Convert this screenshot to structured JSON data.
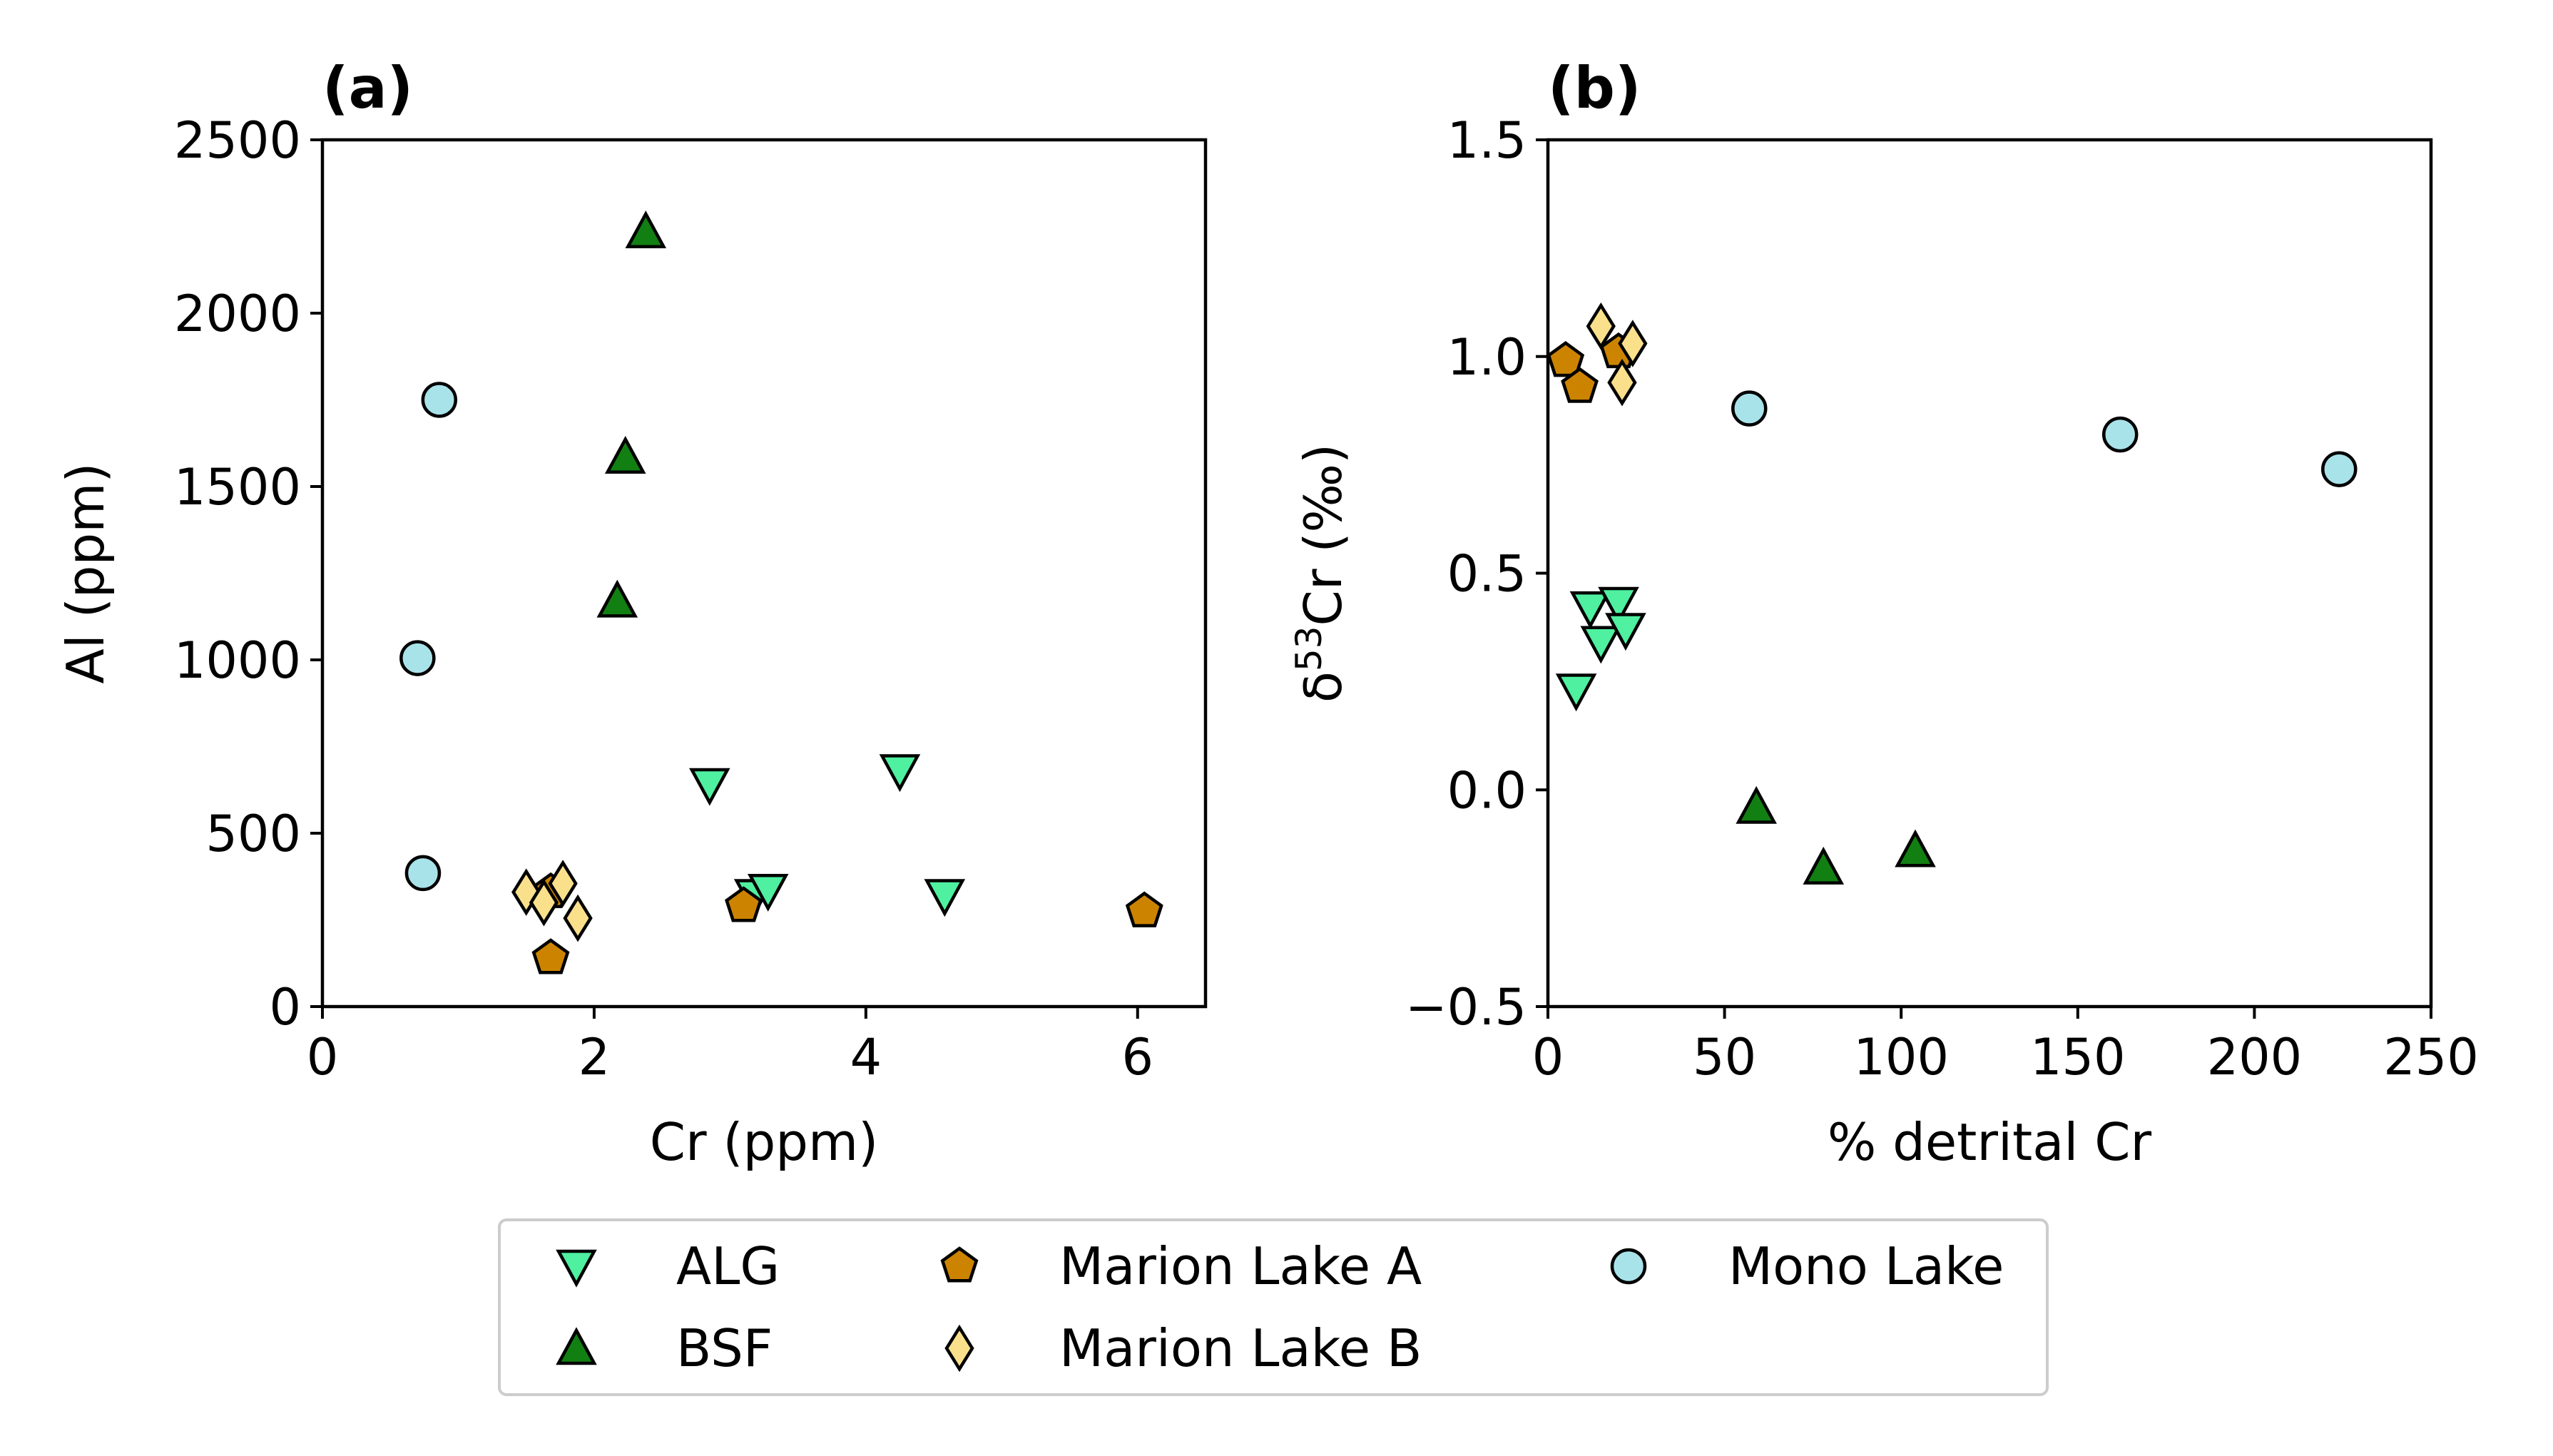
{
  "figure": {
    "legend": {
      "entries": [
        {
          "name": "ALG",
          "label": "ALG"
        },
        {
          "name": "BSF",
          "label": "BSF"
        },
        {
          "name": "Marion Lake A",
          "label": "Marion Lake A"
        },
        {
          "name": "Marion Lake B",
          "label": "Marion Lake B"
        },
        {
          "name": "Mono Lake",
          "label": "Mono Lake"
        }
      ]
    }
  },
  "chart_data": [
    {
      "type": "scatter",
      "id": "a",
      "title": "(a)",
      "xlabel": "Cr (ppm)",
      "ylabel": "Al (ppm)",
      "ylabel_suffix": "",
      "xlim": [
        0,
        6.5
      ],
      "ylim": [
        0,
        2500
      ],
      "xticks": [
        0,
        2,
        4,
        6
      ],
      "yticks": [
        0,
        500,
        1000,
        1500,
        2000,
        2500
      ],
      "xtick_labels": [
        "0",
        "2",
        "4",
        "6"
      ],
      "ytick_labels": [
        "0",
        "500",
        "1000",
        "1500",
        "2000",
        "2500"
      ],
      "series": [
        {
          "name": "ALG",
          "color": "#4ff0a0",
          "marker": "triangle-down",
          "x": [
            2.85,
            4.25,
            4.58,
            3.18,
            3.28
          ],
          "y": [
            640,
            680,
            320,
            320,
            335
          ]
        },
        {
          "name": "BSF",
          "color": "#127f12",
          "marker": "triangle-up",
          "x": [
            2.38,
            2.23,
            2.17
          ],
          "y": [
            2235,
            1585,
            1170
          ]
        },
        {
          "name": "Marion Lake A",
          "color": "#cc8400",
          "marker": "pentagon",
          "x": [
            1.68,
            1.68,
            3.1,
            6.05
          ],
          "y": [
            330,
            140,
            290,
            275
          ]
        },
        {
          "name": "Marion Lake B",
          "color": "#fbe08c",
          "marker": "diamond",
          "x": [
            1.5,
            1.77,
            1.88,
            1.63
          ],
          "y": [
            330,
            355,
            255,
            300
          ]
        },
        {
          "name": "Mono Lake",
          "color": "#a9e3ea",
          "marker": "circle",
          "x": [
            0.86,
            0.7,
            0.74
          ],
          "y": [
            1750,
            1005,
            385
          ]
        }
      ]
    },
    {
      "type": "scatter",
      "id": "b",
      "title": "(b)",
      "xlabel": "% detrital Cr",
      "ylabel": "δ",
      "ylabel_sup": "53",
      "ylabel_suffix": "Cr (‰)",
      "xlim": [
        0,
        250
      ],
      "ylim": [
        -0.5,
        1.5
      ],
      "xticks": [
        0,
        50,
        100,
        150,
        200,
        250
      ],
      "yticks": [
        -0.5,
        0.0,
        0.5,
        1.0,
        1.5
      ],
      "xtick_labels": [
        "0",
        "50",
        "100",
        "150",
        "200",
        "250"
      ],
      "ytick_labels": [
        "−0.5",
        "0.0",
        "0.5",
        "1.0",
        "1.5"
      ],
      "series": [
        {
          "name": "ALG",
          "color": "#4ff0a0",
          "marker": "triangle-down",
          "x": [
            12,
            20,
            15,
            22,
            8
          ],
          "y": [
            0.42,
            0.43,
            0.34,
            0.37,
            0.23
          ]
        },
        {
          "name": "BSF",
          "color": "#127f12",
          "marker": "triangle-up",
          "x": [
            59,
            78,
            104
          ],
          "y": [
            -0.04,
            -0.18,
            -0.14
          ]
        },
        {
          "name": "Marion Lake A",
          "color": "#cc8400",
          "marker": "pentagon",
          "x": [
            5,
            9,
            20
          ],
          "y": [
            0.99,
            0.93,
            1.01
          ]
        },
        {
          "name": "Marion Lake B",
          "color": "#fbe08c",
          "marker": "diamond",
          "x": [
            15,
            24,
            21
          ],
          "y": [
            1.07,
            1.03,
            0.94
          ]
        },
        {
          "name": "Mono Lake",
          "color": "#a9e3ea",
          "marker": "circle",
          "x": [
            57,
            162,
            224
          ],
          "y": [
            0.88,
            0.82,
            0.74
          ]
        }
      ]
    }
  ]
}
